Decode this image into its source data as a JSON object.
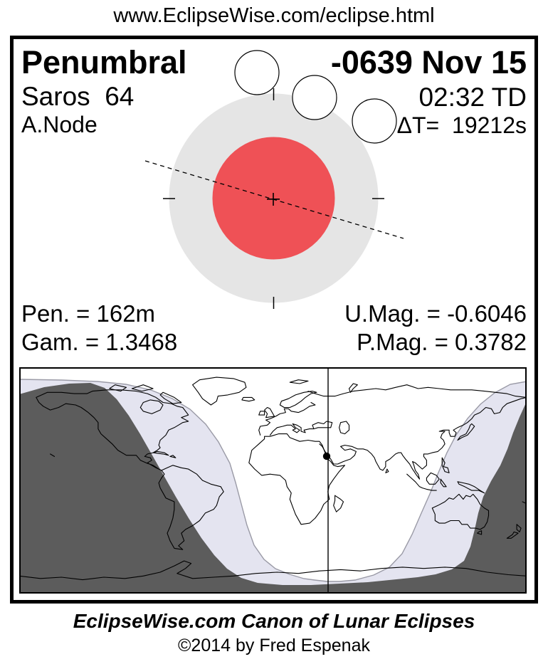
{
  "header": {
    "url": "www.EclipseWise.com/eclipse.html"
  },
  "eclipse": {
    "type_label": "Penumbral",
    "saros_label": "Saros  64",
    "node_label": "A.Node",
    "date": "-0639 Nov 15",
    "time": "02:32 TD",
    "delta_t": "ΔT=  19212s",
    "stats": {
      "pen_duration": "Pen. = 162m",
      "gamma": "Gam. = 1.3468",
      "u_mag": "U.Mag. = -0.6046",
      "p_mag": "P.Mag. = 0.3782"
    }
  },
  "footer": {
    "title": "EclipseWise.com Canon of Lunar Eclipses",
    "copyright": "©2014 by Fred Espenak"
  },
  "colors": {
    "umbra_red": "#ef5156",
    "penumbra_gray": "#e5e5e5",
    "map_night_gray": "#5c5c5c",
    "map_partial_lavender": "#e4e4f0",
    "boundary_gray": "#9a9aa6",
    "ink": "#000000"
  }
}
